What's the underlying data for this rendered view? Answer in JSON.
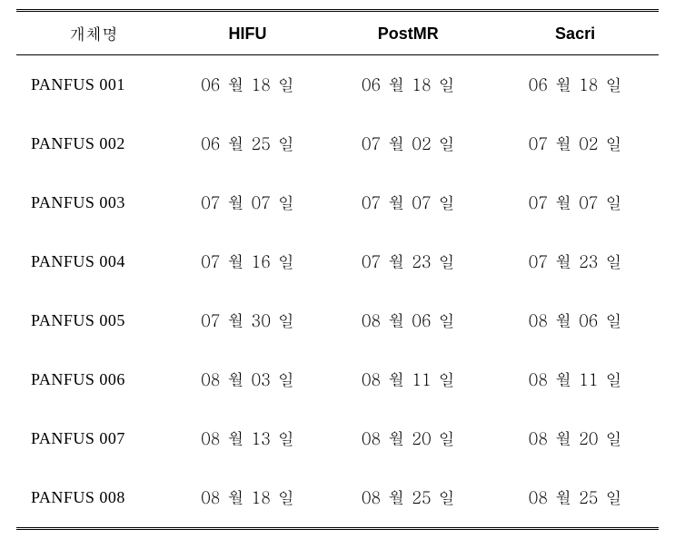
{
  "table": {
    "columns": [
      "개체명",
      "HIFU",
      "PostMR",
      "Sacri"
    ],
    "rows": [
      {
        "name": "PANFUS 001",
        "hifu": "06 월 18 일",
        "postmr": "06 월 18 일",
        "sacri": "06 월 18 일"
      },
      {
        "name": "PANFUS 002",
        "hifu": "06 월 25 일",
        "postmr": "07 월 02 일",
        "sacri": "07 월 02 일"
      },
      {
        "name": "PANFUS 003",
        "hifu": "07 월 07 일",
        "postmr": "07 월 07 일",
        "sacri": "07 월 07 일"
      },
      {
        "name": "PANFUS 004",
        "hifu": "07 월 16 일",
        "postmr": "07 월 23 일",
        "sacri": "07 월 23 일"
      },
      {
        "name": "PANFUS 005",
        "hifu": "07 월 30 일",
        "postmr": "08 월 06 일",
        "sacri": "08 월 06 일"
      },
      {
        "name": "PANFUS 006",
        "hifu": "08 월 03 일",
        "postmr": "08 월 11 일",
        "sacri": "08 월 11 일"
      },
      {
        "name": "PANFUS 007",
        "hifu": "08 월 13 일",
        "postmr": "08 월 20 일",
        "sacri": "08 월 20 일"
      },
      {
        "name": "PANFUS 008",
        "hifu": "08 월 18 일",
        "postmr": "08 월 25 일",
        "sacri": "08 월 25 일"
      }
    ],
    "styling": {
      "border_top": "3px double #000",
      "border_bottom": "3px double #000",
      "header_border_bottom": "1px solid #000",
      "background_color": "#ffffff",
      "text_color": "#000000",
      "header_fontsize": 18,
      "cell_fontsize": 18,
      "row_padding_vertical": 20
    }
  }
}
